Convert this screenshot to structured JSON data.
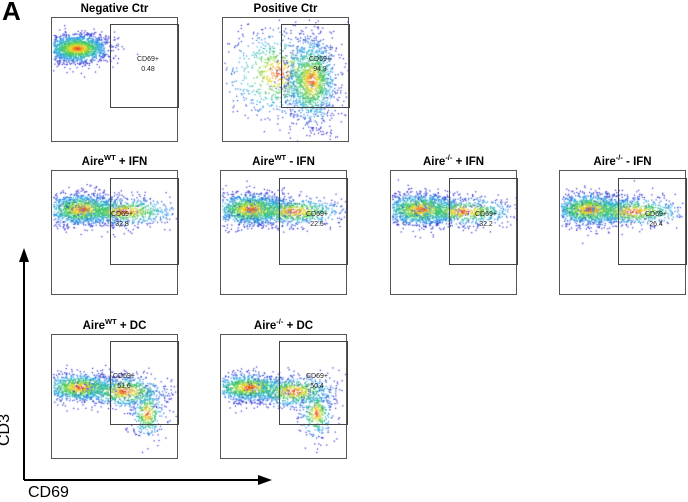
{
  "figure": {
    "panel_label": "A",
    "axis_y": "CD3",
    "axis_x": "CD69"
  },
  "plots": [
    {
      "title_pre": "Negative Ctr",
      "title_sup": "",
      "title_post": "",
      "gate_label": "CD69+",
      "gate_value": "0.48",
      "pattern": "negative"
    },
    {
      "title_pre": "Positive Ctr",
      "title_sup": "",
      "title_post": "",
      "gate_label": "CD69+",
      "gate_value": "94.3",
      "pattern": "positive"
    },
    {
      "title_pre": "Aire",
      "title_sup": "WT",
      "title_post": " + IFN",
      "gate_label": "CD69+",
      "gate_value": "32.8",
      "pattern": "ifn"
    },
    {
      "title_pre": "Aire",
      "title_sup": "WT",
      "title_post": " - IFN",
      "gate_label": "CD69+",
      "gate_value": "22.5",
      "pattern": "ifn"
    },
    {
      "title_pre": "Aire",
      "title_sup": "-/-",
      "title_post": " + IFN",
      "gate_label": "CD69+",
      "gate_value": "32.2",
      "pattern": "ifn"
    },
    {
      "title_pre": "Aire",
      "title_sup": "-/-",
      "title_post": " - IFN",
      "gate_label": "CD69+",
      "gate_value": "26.4",
      "pattern": "ifn"
    },
    {
      "title_pre": "Aire",
      "title_sup": "WT",
      "title_post": " + DC",
      "gate_label": "CD69+",
      "gate_value": "51.6",
      "pattern": "dc"
    },
    {
      "title_pre": "Aire",
      "title_sup": "-/-",
      "title_post": " + DC",
      "gate_label": "CD69+",
      "gate_value": "50.4",
      "pattern": "dc"
    }
  ]
}
